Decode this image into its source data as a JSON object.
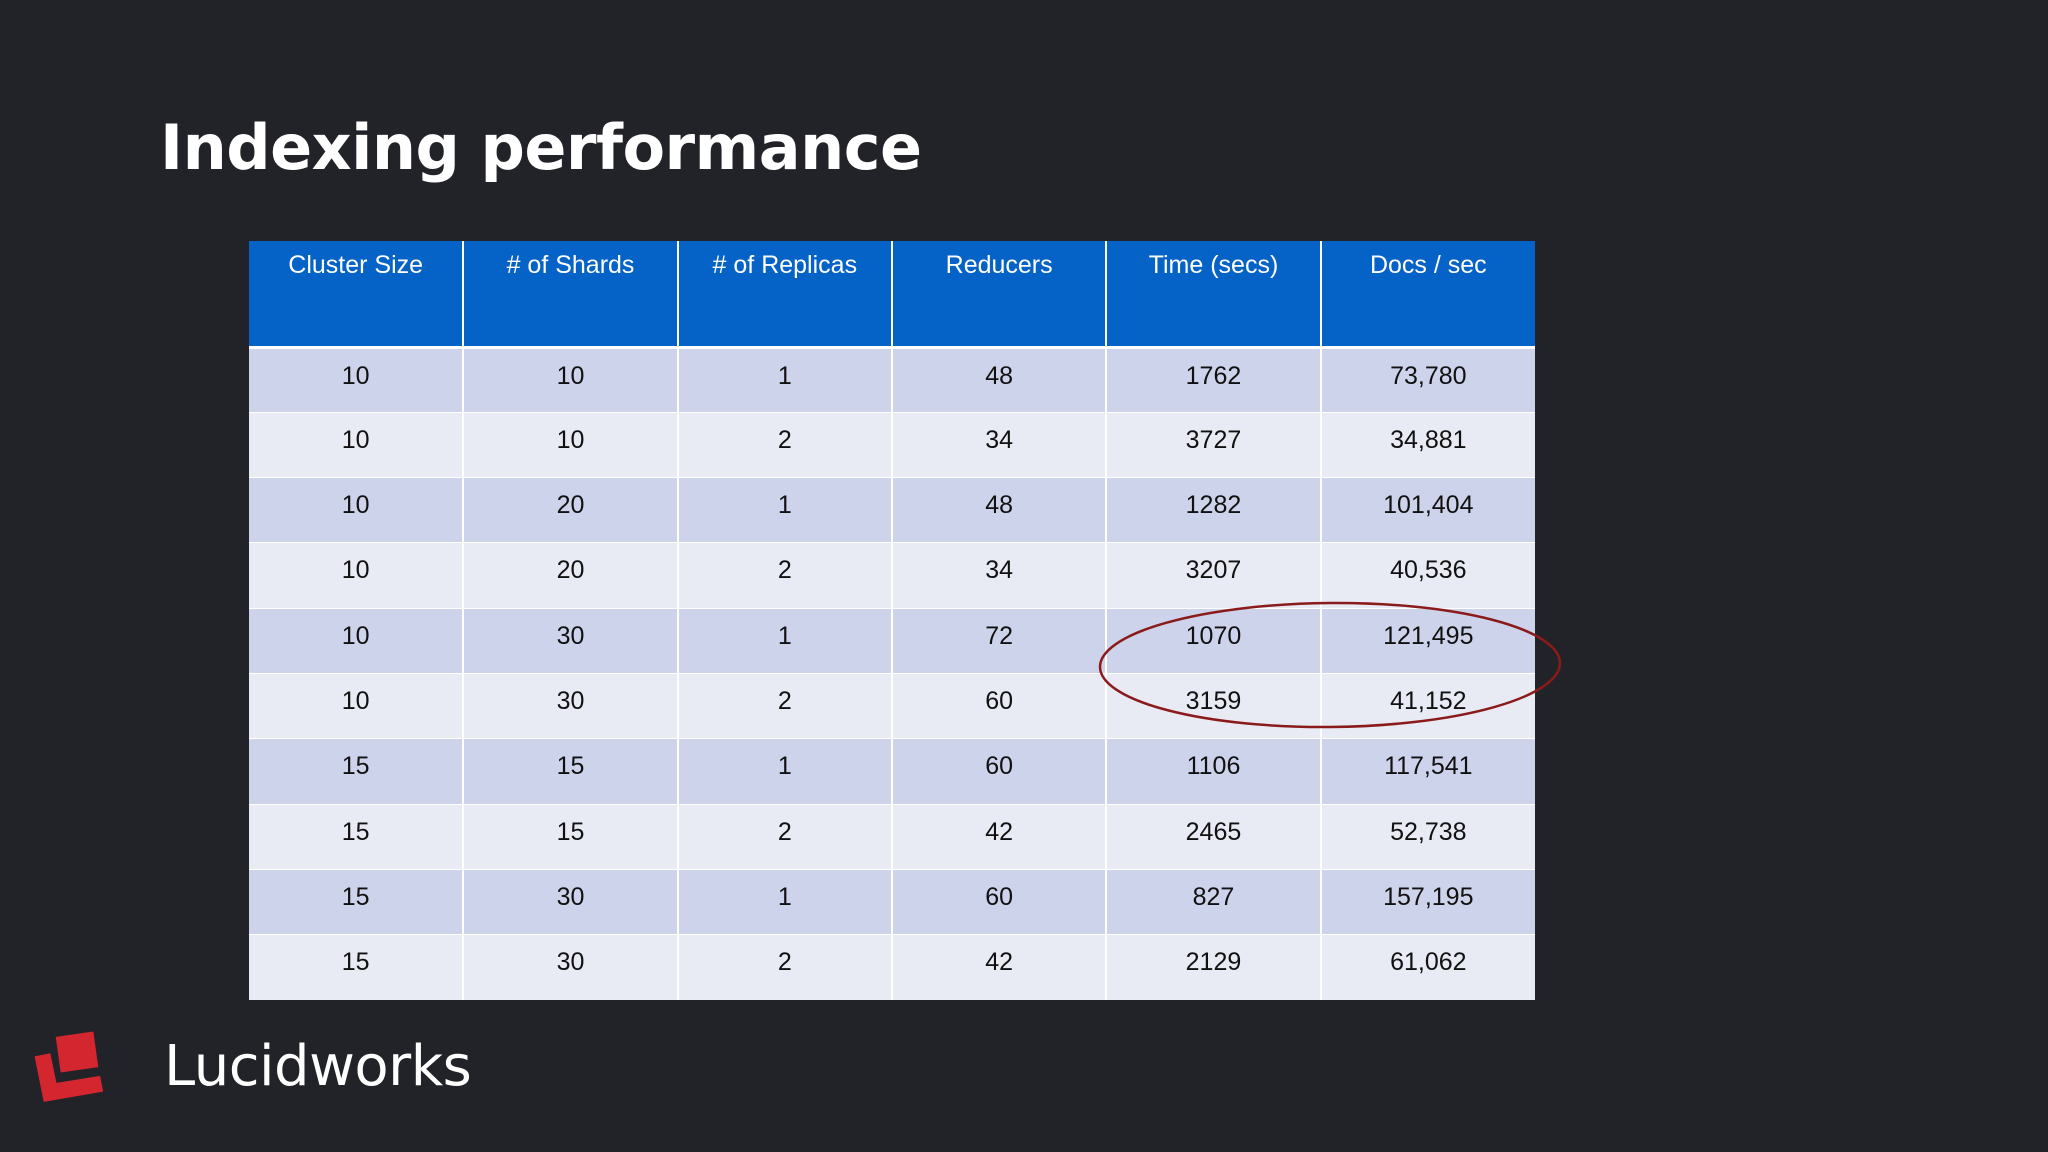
{
  "slide": {
    "title": "Indexing performance"
  },
  "table": {
    "headers": [
      "Cluster Size",
      "# of Shards",
      "# of Replicas",
      "Reducers",
      "Time (secs)",
      "Docs / sec"
    ],
    "rows": [
      [
        "10",
        "10",
        "1",
        "48",
        "1762",
        "73,780"
      ],
      [
        "10",
        "10",
        "2",
        "34",
        "3727",
        "34,881"
      ],
      [
        "10",
        "20",
        "1",
        "48",
        "1282",
        "101,404"
      ],
      [
        "10",
        "20",
        "2",
        "34",
        "3207",
        "40,536"
      ],
      [
        "10",
        "30",
        "1",
        "72",
        "1070",
        "121,495"
      ],
      [
        "10",
        "30",
        "2",
        "60",
        "3159",
        "41,152"
      ],
      [
        "15",
        "15",
        "1",
        "60",
        "1106",
        "117,541"
      ],
      [
        "15",
        "15",
        "2",
        "42",
        "2465",
        "52,738"
      ],
      [
        "15",
        "30",
        "1",
        "60",
        "827",
        "157,195"
      ],
      [
        "15",
        "30",
        "2",
        "42",
        "2129",
        "61,062"
      ]
    ],
    "colors": {
      "header": "#0562c6",
      "row_odd": "#cdd3ea",
      "row_even": "#e8eaf4",
      "highlight": "#8b1a1a"
    }
  },
  "brand": {
    "name": "Lucidworks",
    "logo_icon": "lucidworks-logo-icon",
    "logo_color": "#d3262f"
  }
}
